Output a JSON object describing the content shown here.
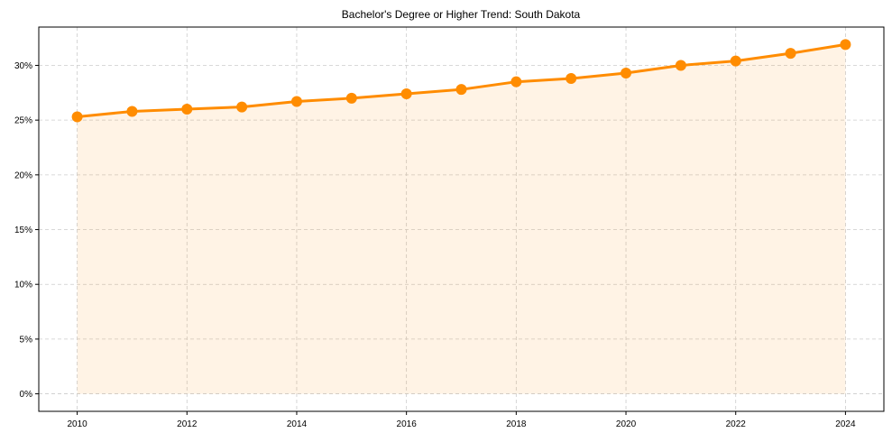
{
  "chart_data": {
    "type": "line",
    "title": "Bachelor's Degree or Higher Trend: South Dakota",
    "xlabel": "",
    "ylabel": "",
    "x": [
      2010,
      2011,
      2012,
      2013,
      2014,
      2015,
      2016,
      2017,
      2018,
      2019,
      2020,
      2021,
      2022,
      2023,
      2024
    ],
    "series": [
      {
        "name": "Bachelor's Degree or Higher",
        "values": [
          25.3,
          25.8,
          26.0,
          26.2,
          26.7,
          27.0,
          27.4,
          27.8,
          28.5,
          28.8,
          29.3,
          30.0,
          30.4,
          31.1,
          31.9
        ],
        "color": "#ff8c00",
        "fill": true,
        "fill_color": "#ff8c00",
        "fill_alpha": 0.1,
        "markers": true
      }
    ],
    "x_ticks": [
      2010,
      2012,
      2014,
      2016,
      2018,
      2020,
      2022,
      2024
    ],
    "y_ticks": [
      0,
      5,
      10,
      15,
      20,
      25,
      30
    ],
    "y_tick_labels": [
      "0%",
      "5%",
      "10%",
      "15%",
      "20%",
      "25%",
      "30%"
    ],
    "xlim": [
      2009.3,
      2024.7
    ],
    "ylim": [
      -1.6,
      33.5
    ],
    "grid": true,
    "legend": null
  }
}
